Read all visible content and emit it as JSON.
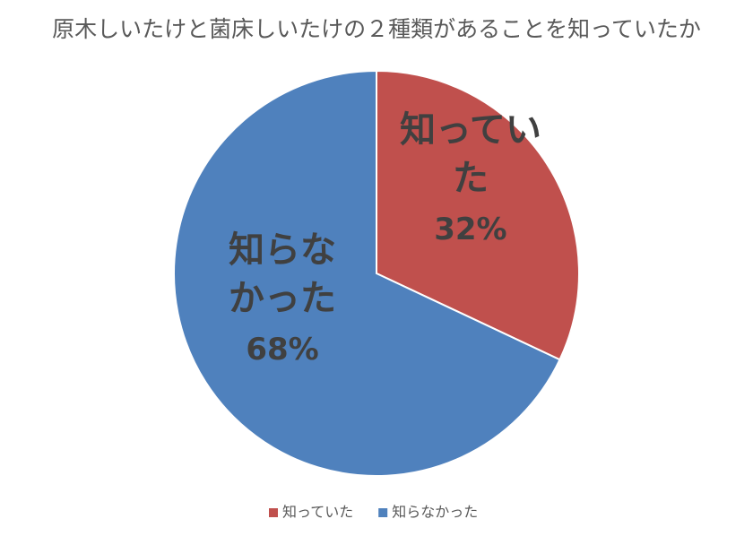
{
  "chart_data": {
    "type": "pie",
    "title": "原木しいたけと菌床しいたけの２種類があることを知っていたか",
    "categories": [
      "知っていた",
      "知らなかった"
    ],
    "values": [
      32,
      68
    ],
    "value_labels": [
      "32%",
      "68%"
    ],
    "colors": [
      "#c0504d",
      "#4f81bd"
    ],
    "legend": "bottom"
  }
}
